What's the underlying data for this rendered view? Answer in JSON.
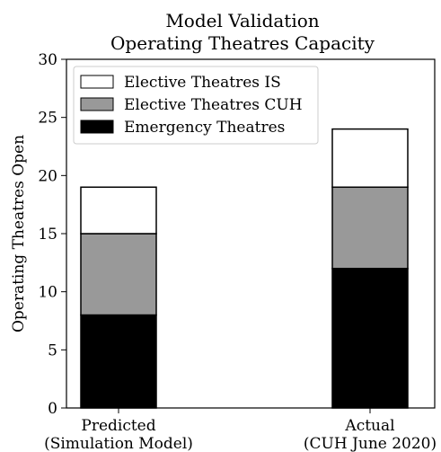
{
  "chart_data": {
    "type": "stacked-bar",
    "title": [
      "Model Validation",
      "Operating Theatres Capacity"
    ],
    "ylabel": "Operating Theatres Open",
    "categories": [
      [
        "Predicted",
        "(Simulation Model)"
      ],
      [
        "Actual",
        "(CUH June 2020)"
      ]
    ],
    "series": [
      {
        "name": "Emergency Theatres",
        "color": "#000000",
        "values": [
          8,
          12
        ]
      },
      {
        "name": "Elective Theatres CUH",
        "color": "#999999",
        "values": [
          7,
          7
        ]
      },
      {
        "name": "Elective Theatres IS",
        "color": "#ffffff",
        "values": [
          4,
          5
        ]
      }
    ],
    "ylim": [
      0,
      30
    ],
    "yticks": [
      0,
      5,
      10,
      15,
      20,
      25,
      30
    ],
    "legend": "upper left"
  }
}
